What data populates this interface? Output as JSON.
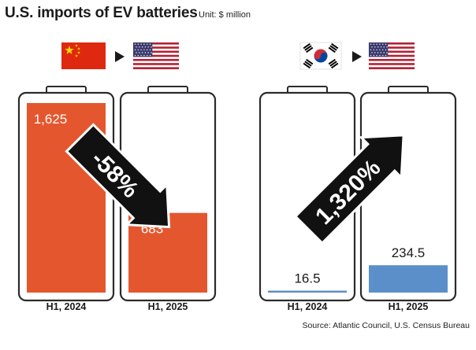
{
  "header": {
    "title": "U.S. imports of EV batteries",
    "unit": "Unit: $ million"
  },
  "source": "Source: Atlantic Council, U.S. Census Bureau",
  "colors": {
    "china_fill": "#e4572e",
    "korea_fill": "#5b8fc9",
    "battery_outline": "#2b2b2b",
    "arrow": "#111111"
  },
  "panels": [
    {
      "flags": [
        "china-flag-icon",
        "usa-flag-icon"
      ],
      "change_label": "-58%",
      "direction": "down"
    },
    {
      "flags": [
        "south-korea-flag-icon",
        "usa-flag-icon"
      ],
      "change_label": "1,320%",
      "direction": "up"
    }
  ],
  "chart_data": {
    "type": "bar",
    "title": "U.S. imports of EV batteries",
    "unit": "$ million",
    "categories": [
      "H1, 2024",
      "H1, 2025"
    ],
    "series": [
      {
        "name": "China",
        "values": [
          1625,
          683
        ],
        "value_labels": [
          "1,625",
          "683"
        ],
        "change": "-58%",
        "color": "#e4572e"
      },
      {
        "name": "South Korea",
        "values": [
          16.5,
          234.5
        ],
        "value_labels": [
          "16.5",
          "234.5"
        ],
        "change": "1,320%",
        "color": "#5b8fc9"
      }
    ],
    "ylim": [
      0,
      1625
    ]
  }
}
